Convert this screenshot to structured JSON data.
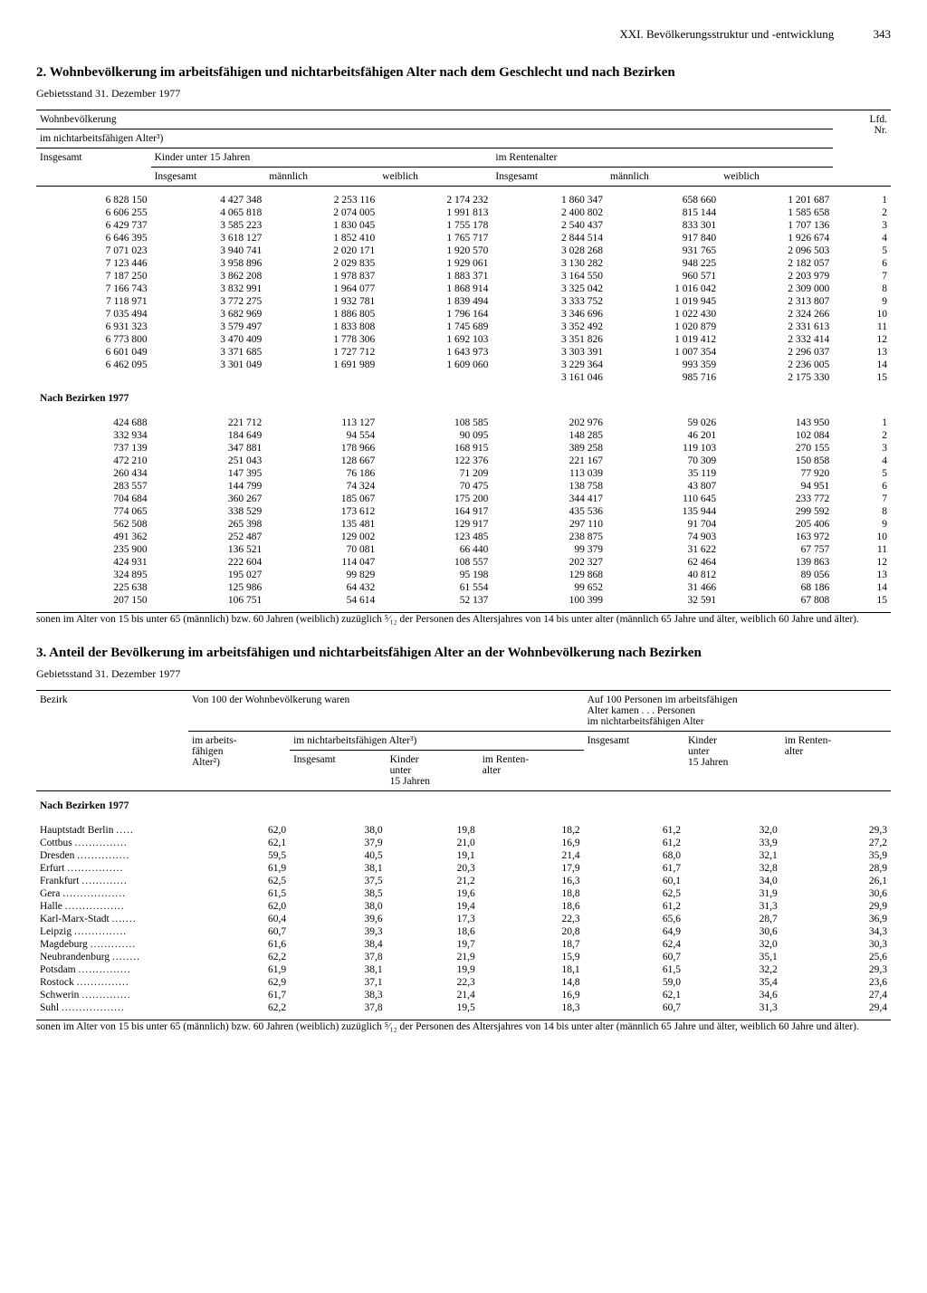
{
  "header": {
    "chapter": "XXI. Bevölkerungsstruktur und -entwicklung",
    "page": "343"
  },
  "section2": {
    "title": "2. Wohnbevölkerung im arbeitsfähigen und nichtarbeitsfähigen Alter nach dem Geschlecht und nach Bezirken",
    "subtitle": "Gebietsstand 31. Dezember 1977",
    "col_headers": {
      "top": "Wohnbevölkerung",
      "sub": "im nichtarbeitsfähigen Alter³)",
      "grp1": "Insgesamt",
      "grp2": "Kinder unter 15 Jahren",
      "grp3": "im Rentenalter",
      "grp2_a": "Insgesamt",
      "grp2_b": "männlich",
      "grp2_c": "weiblich",
      "grp3_a": "Insgesamt",
      "grp3_b": "männlich",
      "grp3_c": "weiblich",
      "lfd": "Lfd.\nNr."
    },
    "rows_a": [
      [
        "6 828 150",
        "4 427 348",
        "2 253 116",
        "2 174 232",
        "1 860 347",
        "658 660",
        "1 201 687",
        "1"
      ],
      [
        "6 606 255",
        "4 065 818",
        "2 074 005",
        "1 991 813",
        "2 400 802",
        "815 144",
        "1 585 658",
        "2"
      ],
      [
        "6 429 737",
        "3 585 223",
        "1 830 045",
        "1 755 178",
        "2 540 437",
        "833 301",
        "1 707 136",
        "3"
      ],
      [
        "6 646 395",
        "3 618 127",
        "1 852 410",
        "1 765 717",
        "2 844 514",
        "917 840",
        "1 926 674",
        "4"
      ],
      [
        "7 071 023",
        "3 940 741",
        "2 020 171",
        "1 920 570",
        "3 028 268",
        "931 765",
        "2 096 503",
        "5"
      ],
      [
        "7 123 446",
        "3 958 896",
        "2 029 835",
        "1 929 061",
        "3 130 282",
        "948 225",
        "2 182 057",
        "6"
      ],
      [
        "7 187 250",
        "3 862 208",
        "1 978 837",
        "1 883 371",
        "3 164 550",
        "960 571",
        "2 203 979",
        "7"
      ],
      [
        "7 166 743",
        "3 832 991",
        "1 964 077",
        "1 868 914",
        "3 325 042",
        "1 016 042",
        "2 309 000",
        "8"
      ],
      [
        "7 118 971",
        "3 772 275",
        "1 932 781",
        "1 839 494",
        "3 333 752",
        "1 019 945",
        "2 313 807",
        "9"
      ],
      [
        "7 035 494",
        "3 682 969",
        "1 886 805",
        "1 796 164",
        "3 346 696",
        "1 022 430",
        "2 324 266",
        "10"
      ],
      [
        "6 931 323",
        "3 579 497",
        "1 833 808",
        "1 745 689",
        "3 352 492",
        "1 020 879",
        "2 331 613",
        "11"
      ],
      [
        "6 773 800",
        "3 470 409",
        "1 778 306",
        "1 692 103",
        "3 351 826",
        "1 019 412",
        "2 332 414",
        "12"
      ],
      [
        "6 601 049",
        "3 371 685",
        "1 727 712",
        "1 643 973",
        "3 303 391",
        "1 007 354",
        "2 296 037",
        "13"
      ],
      [
        "6 462 095",
        "3 301 049",
        "1 691 989",
        "1 609 060",
        "3 229 364",
        "993 359",
        "2 236 005",
        "14"
      ],
      [
        "",
        "",
        "",
        "",
        "3 161 046",
        "985 716",
        "2 175 330",
        "15"
      ]
    ],
    "section_label": "Nach Bezirken 1977",
    "rows_b": [
      [
        "424 688",
        "221 712",
        "113 127",
        "108 585",
        "202 976",
        "59 026",
        "143 950",
        "1"
      ],
      [
        "332 934",
        "184 649",
        "94 554",
        "90 095",
        "148 285",
        "46 201",
        "102 084",
        "2"
      ],
      [
        "737 139",
        "347 881",
        "178 966",
        "168 915",
        "389 258",
        "119 103",
        "270 155",
        "3"
      ],
      [
        "472 210",
        "251 043",
        "128 667",
        "122 376",
        "221 167",
        "70 309",
        "150 858",
        "4"
      ],
      [
        "260 434",
        "147 395",
        "76 186",
        "71 209",
        "113 039",
        "35 119",
        "77 920",
        "5"
      ],
      [
        "283 557",
        "144 799",
        "74 324",
        "70 475",
        "138 758",
        "43 807",
        "94 951",
        "6"
      ],
      [
        "704 684",
        "360 267",
        "185 067",
        "175 200",
        "344 417",
        "110 645",
        "233 772",
        "7"
      ],
      [
        "774 065",
        "338 529",
        "173 612",
        "164 917",
        "435 536",
        "135 944",
        "299 592",
        "8"
      ],
      [
        "562 508",
        "265 398",
        "135 481",
        "129 917",
        "297 110",
        "91 704",
        "205 406",
        "9"
      ],
      [
        "491 362",
        "252 487",
        "129 002",
        "123 485",
        "238 875",
        "74 903",
        "163 972",
        "10"
      ],
      [
        "235 900",
        "136 521",
        "70 081",
        "66 440",
        "99 379",
        "31 622",
        "67 757",
        "11"
      ],
      [
        "424 931",
        "222 604",
        "114 047",
        "108 557",
        "202 327",
        "62 464",
        "139 863",
        "12"
      ],
      [
        "324 895",
        "195 027",
        "99 829",
        "95 198",
        "129 868",
        "40 812",
        "89 056",
        "13"
      ],
      [
        "225 638",
        "125 986",
        "64 432",
        "61 554",
        "99 652",
        "31 466",
        "68 186",
        "14"
      ],
      [
        "207 150",
        "106 751",
        "54 614",
        "52 137",
        "100 399",
        "32 591",
        "67 808",
        "15"
      ]
    ],
    "footnote": "sonen im Alter von 15 bis unter 65 (männlich) bzw. 60 Jahren (weiblich) zuzüglich ⁵⁄₁₂ der Personen des Altersjahres von 14 bis unter alter (männlich 65 Jahre und älter, weiblich 60 Jahre und älter)."
  },
  "section3": {
    "title": "3. Anteil der Bevölkerung im arbeitsfähigen und nichtarbeitsfähigen Alter an der Wohnbevölkerung nach Bezirken",
    "subtitle": "Gebietsstand 31. Dezember 1977",
    "headers": {
      "bezirk": "Bezirk",
      "grpA": "Von 100 der Wohnbevölkerung waren",
      "grpB": "Auf 100 Personen im arbeitsfähigen Alter kamen . . . Personen im nichtarbeitsfähigen Alter",
      "a1": "im arbeits-\nfähigen\nAlter²)",
      "a2": "im nichtarbeitsfähigen Alter³)",
      "sub_ins": "Insgesamt",
      "sub_kind": "Kinder\nunter\n15 Jahren",
      "sub_rent": "im Renten-\nalter"
    },
    "section_label": "Nach Bezirken 1977",
    "rows": [
      [
        "Hauptstadt Berlin",
        "62,0",
        "38,0",
        "19,8",
        "18,2",
        "61,2",
        "32,0",
        "29,3"
      ],
      [
        "Cottbus",
        "62,1",
        "37,9",
        "21,0",
        "16,9",
        "61,2",
        "33,9",
        "27,2"
      ],
      [
        "Dresden",
        "59,5",
        "40,5",
        "19,1",
        "21,4",
        "68,0",
        "32,1",
        "35,9"
      ],
      [
        "Erfurt",
        "61,9",
        "38,1",
        "20,3",
        "17,9",
        "61,7",
        "32,8",
        "28,9"
      ],
      [
        "Frankfurt",
        "62,5",
        "37,5",
        "21,2",
        "16,3",
        "60,1",
        "34,0",
        "26,1"
      ],
      [
        "Gera",
        "61,5",
        "38,5",
        "19,6",
        "18,8",
        "62,5",
        "31,9",
        "30,6"
      ],
      [
        "Halle",
        "62,0",
        "38,0",
        "19,4",
        "18,6",
        "61,2",
        "31,3",
        "29,9"
      ],
      [
        "Karl-Marx-Stadt",
        "60,4",
        "39,6",
        "17,3",
        "22,3",
        "65,6",
        "28,7",
        "36,9"
      ],
      [
        "Leipzig",
        "60,7",
        "39,3",
        "18,6",
        "20,8",
        "64,9",
        "30,6",
        "34,3"
      ],
      [
        "Magdeburg",
        "61,6",
        "38,4",
        "19,7",
        "18,7",
        "62,4",
        "32,0",
        "30,3"
      ],
      [
        "Neubrandenburg",
        "62,2",
        "37,8",
        "21,9",
        "15,9",
        "60,7",
        "35,1",
        "25,6"
      ],
      [
        "Potsdam",
        "61,9",
        "38,1",
        "19,9",
        "18,1",
        "61,5",
        "32,2",
        "29,3"
      ],
      [
        "Rostock",
        "62,9",
        "37,1",
        "22,3",
        "14,8",
        "59,0",
        "35,4",
        "23,6"
      ],
      [
        "Schwerin",
        "61,7",
        "38,3",
        "21,4",
        "16,9",
        "62,1",
        "34,6",
        "27,4"
      ],
      [
        "Suhl",
        "62,2",
        "37,8",
        "19,5",
        "18,3",
        "60,7",
        "31,3",
        "29,4"
      ]
    ],
    "footnote": "sonen im Alter von 15 bis unter 65 (männlich) bzw. 60 Jahren (weiblich) zuzüglich ⁵⁄₁₂ der Personen des Altersjahres von 14 bis unter alter (männlich 65 Jahre und älter, weiblich 60 Jahre und älter)."
  }
}
